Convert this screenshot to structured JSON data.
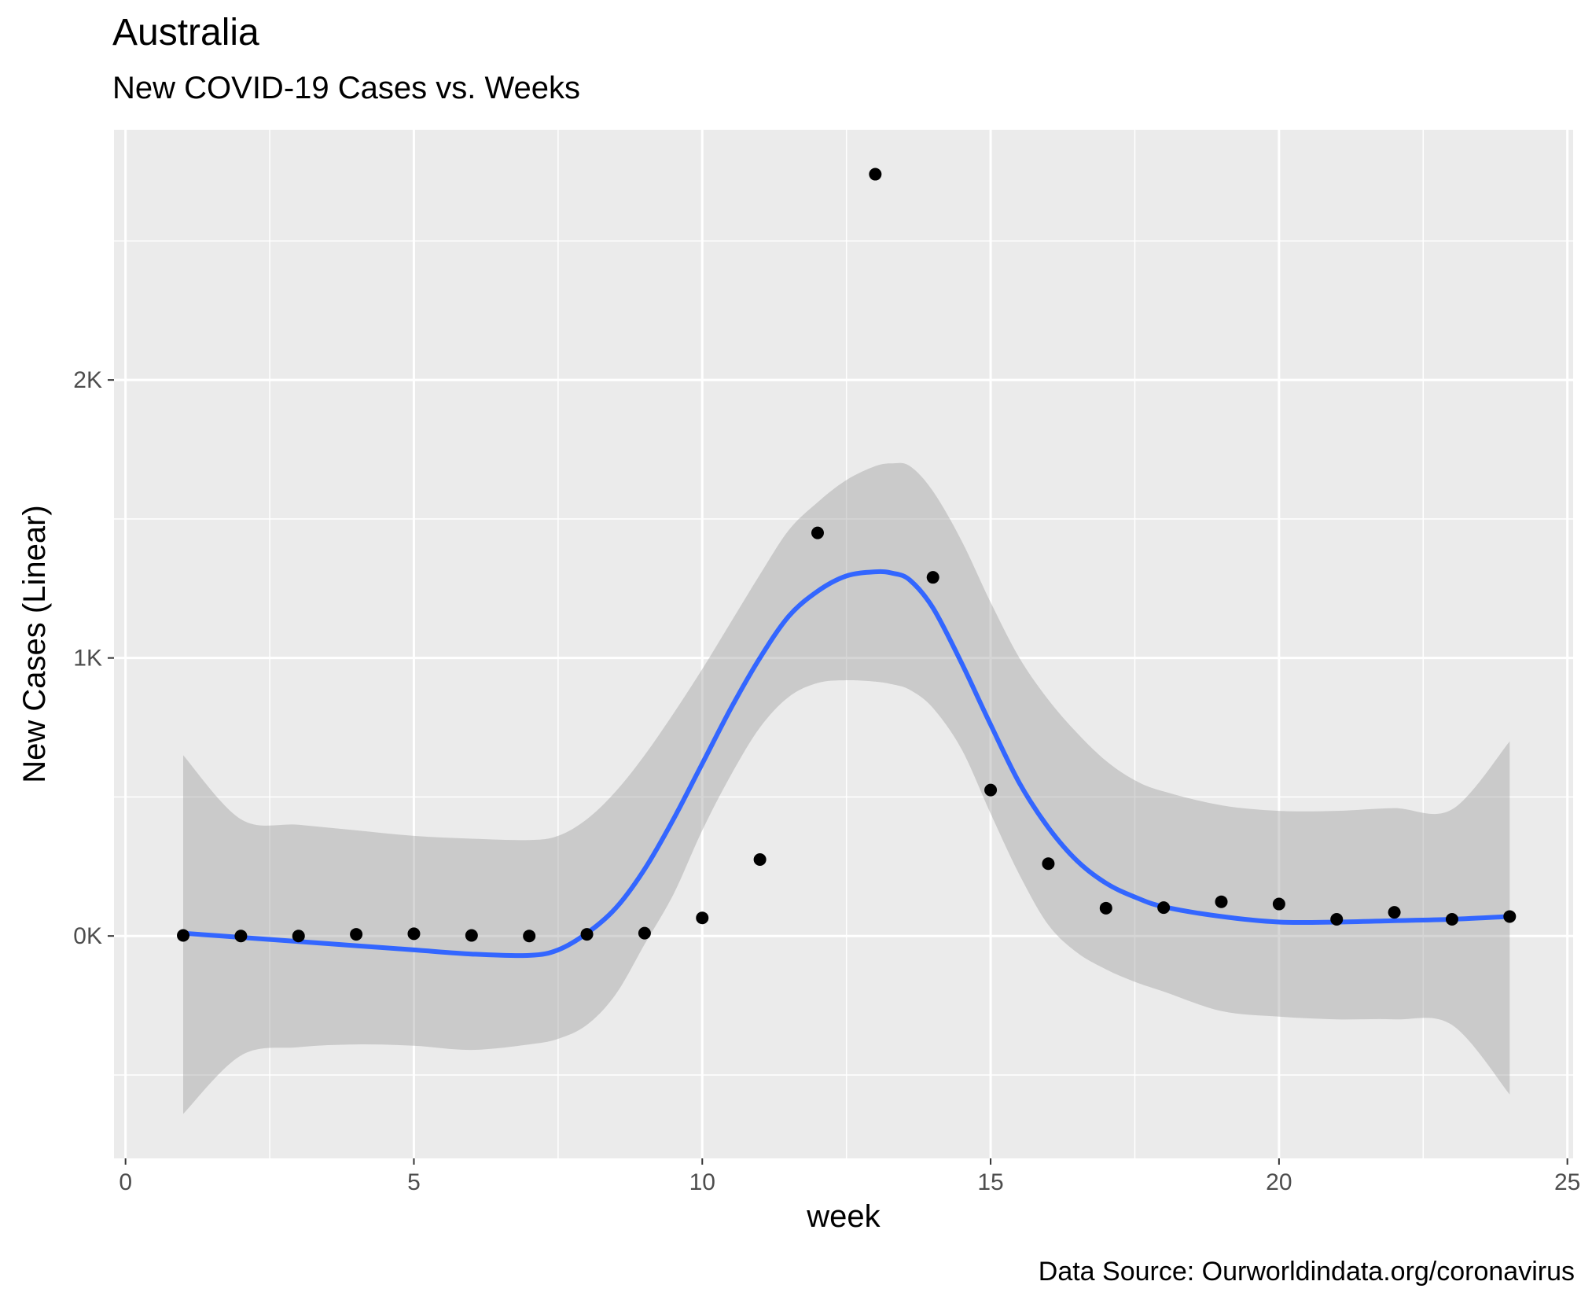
{
  "chart_data": {
    "type": "scatter",
    "title": "Australia",
    "subtitle": "New COVID-19 Cases vs. Weeks",
    "caption": "Data Source: Ourworldindata.org/coronavirus",
    "xlabel": "week",
    "ylabel": "New Cases (Linear)",
    "xlim": [
      -0.2,
      25.1
    ],
    "ylim": [
      -800,
      2900
    ],
    "x_ticks": [
      0,
      5,
      10,
      15,
      20,
      25
    ],
    "x_tick_labels": [
      "0",
      "5",
      "10",
      "15",
      "20",
      "25"
    ],
    "y_ticks": [
      0,
      1000,
      2000
    ],
    "y_tick_labels": [
      "0K",
      "1K",
      "2K"
    ],
    "grid": true,
    "legend": "none",
    "points": {
      "x": [
        1,
        2,
        3,
        4,
        5,
        6,
        7,
        8,
        9,
        10,
        11,
        12,
        13,
        14,
        15,
        16,
        17,
        18,
        19,
        20,
        21,
        22,
        23,
        24
      ],
      "y": [
        2,
        0,
        0,
        6,
        8,
        2,
        0,
        6,
        10,
        65,
        275,
        1450,
        2740,
        1290,
        525,
        260,
        100,
        102,
        123,
        115,
        60,
        85,
        60,
        70
      ]
    },
    "smooth": {
      "color": "#3366ff",
      "x": [
        1,
        2,
        3,
        4,
        5,
        6,
        7,
        7.5,
        8,
        8.5,
        9,
        9.5,
        10,
        10.5,
        11,
        11.5,
        12,
        12.5,
        13,
        13.3,
        13.6,
        14,
        14.5,
        15,
        15.5,
        16,
        16.5,
        17,
        17.5,
        18,
        19,
        20,
        21,
        22,
        23,
        24
      ],
      "y": [
        10,
        -5,
        -20,
        -35,
        -50,
        -65,
        -70,
        -50,
        10,
        100,
        240,
        420,
        620,
        820,
        1000,
        1150,
        1240,
        1295,
        1310,
        1305,
        1280,
        1180,
        980,
        760,
        550,
        390,
        270,
        190,
        140,
        105,
        70,
        50,
        50,
        55,
        60,
        70
      ],
      "upper": [
        650,
        420,
        400,
        380,
        360,
        350,
        345,
        360,
        420,
        520,
        650,
        800,
        960,
        1130,
        1300,
        1460,
        1560,
        1640,
        1690,
        1700,
        1690,
        1600,
        1420,
        1200,
        1000,
        850,
        730,
        630,
        560,
        520,
        470,
        450,
        450,
        460,
        455,
        700
      ],
      "lower": [
        -640,
        -430,
        -400,
        -390,
        -395,
        -410,
        -390,
        -370,
        -320,
        -210,
        -30,
        150,
        380,
        580,
        750,
        860,
        910,
        920,
        915,
        905,
        885,
        820,
        670,
        440,
        220,
        40,
        -60,
        -120,
        -165,
        -200,
        -270,
        -290,
        -300,
        -300,
        -320,
        -570
      ]
    }
  }
}
